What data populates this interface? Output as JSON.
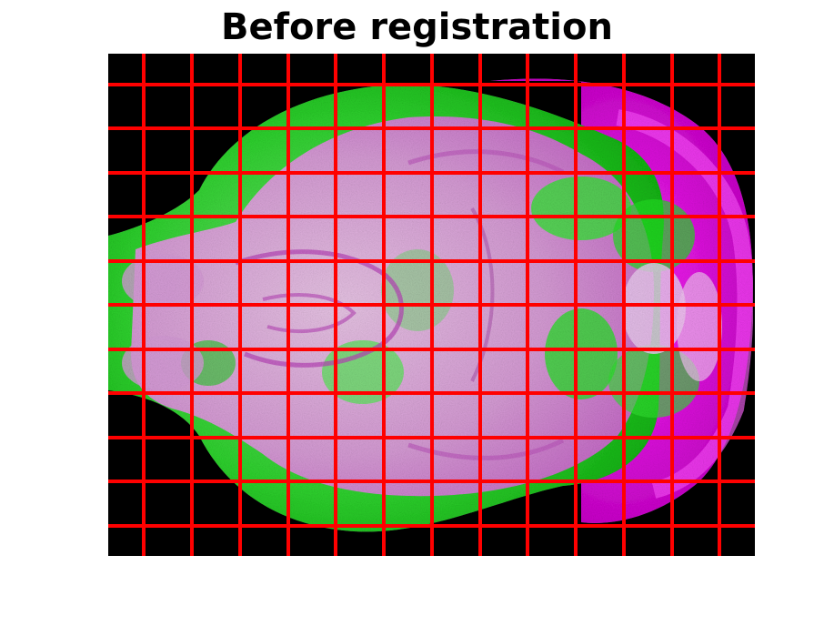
{
  "figure": {
    "title": "Before registration"
  },
  "image": {
    "description_colors": {
      "background": "#000000",
      "moving_channel": "#1ee61e",
      "fixed_channel": "#ff00ff",
      "overlap": "#d8c8d8"
    },
    "grid": {
      "color": "#ff0000",
      "vertical_lines": 13,
      "horizontal_lines": 11
    }
  }
}
